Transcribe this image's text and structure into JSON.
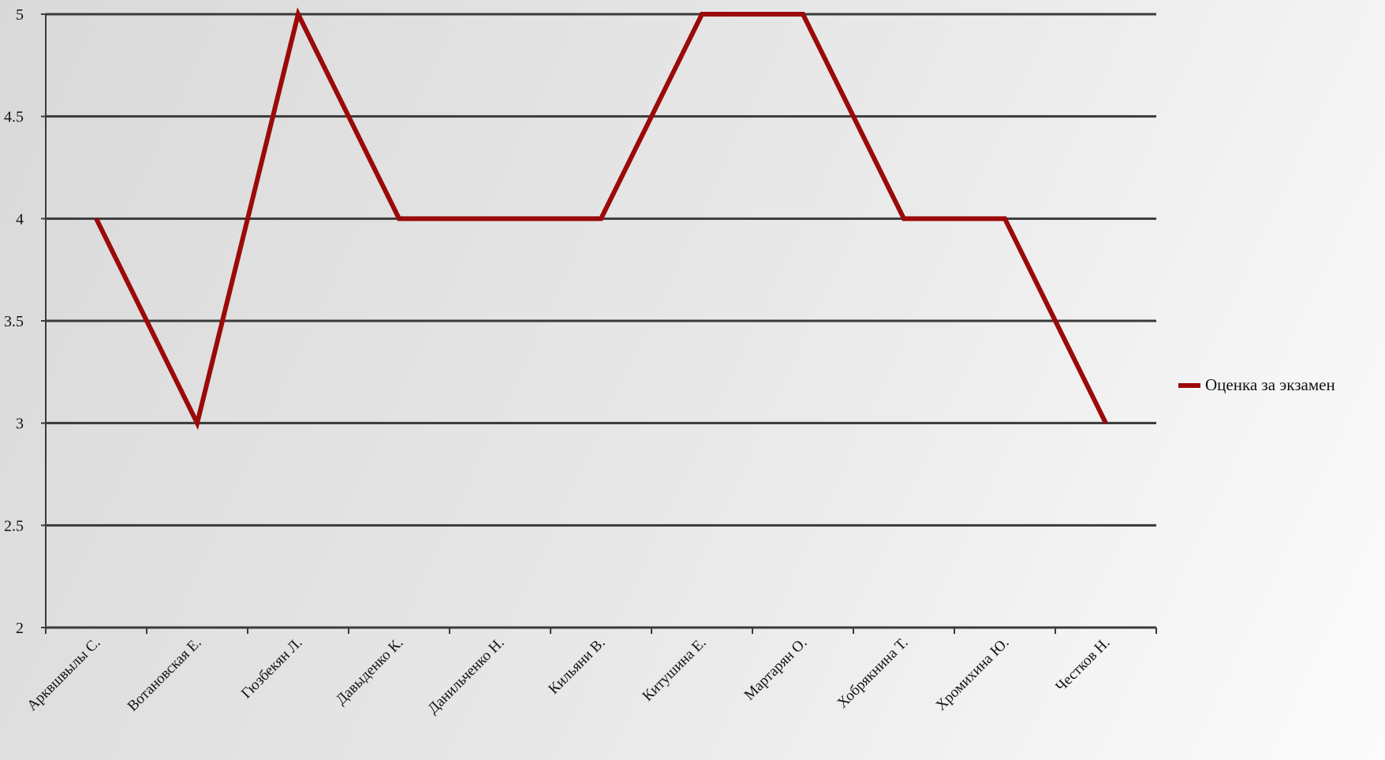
{
  "chart_data": {
    "type": "line",
    "categories": [
      "Арквшвылы С.",
      "Вотановская Е.",
      "Гюзбекян Л.",
      "Давыденко К.",
      "Данильченко Н.",
      "Кильяни В.",
      "Китушина Е.",
      "Мартарян О.",
      "Хобрякнина Т.",
      "Хромихина Ю.",
      "Честков Н."
    ],
    "series": [
      {
        "name": "Оценка за экзамен",
        "values": [
          4,
          3,
          5,
          4,
          4,
          4,
          5,
          5,
          4,
          4,
          3
        ],
        "color": "#9b0a0a"
      }
    ],
    "ylim": [
      2,
      5
    ],
    "yticks": [
      "2",
      "2.5",
      "3",
      "3.5",
      "4",
      "4.5",
      "5"
    ],
    "grid": true,
    "legend_position": "right"
  }
}
